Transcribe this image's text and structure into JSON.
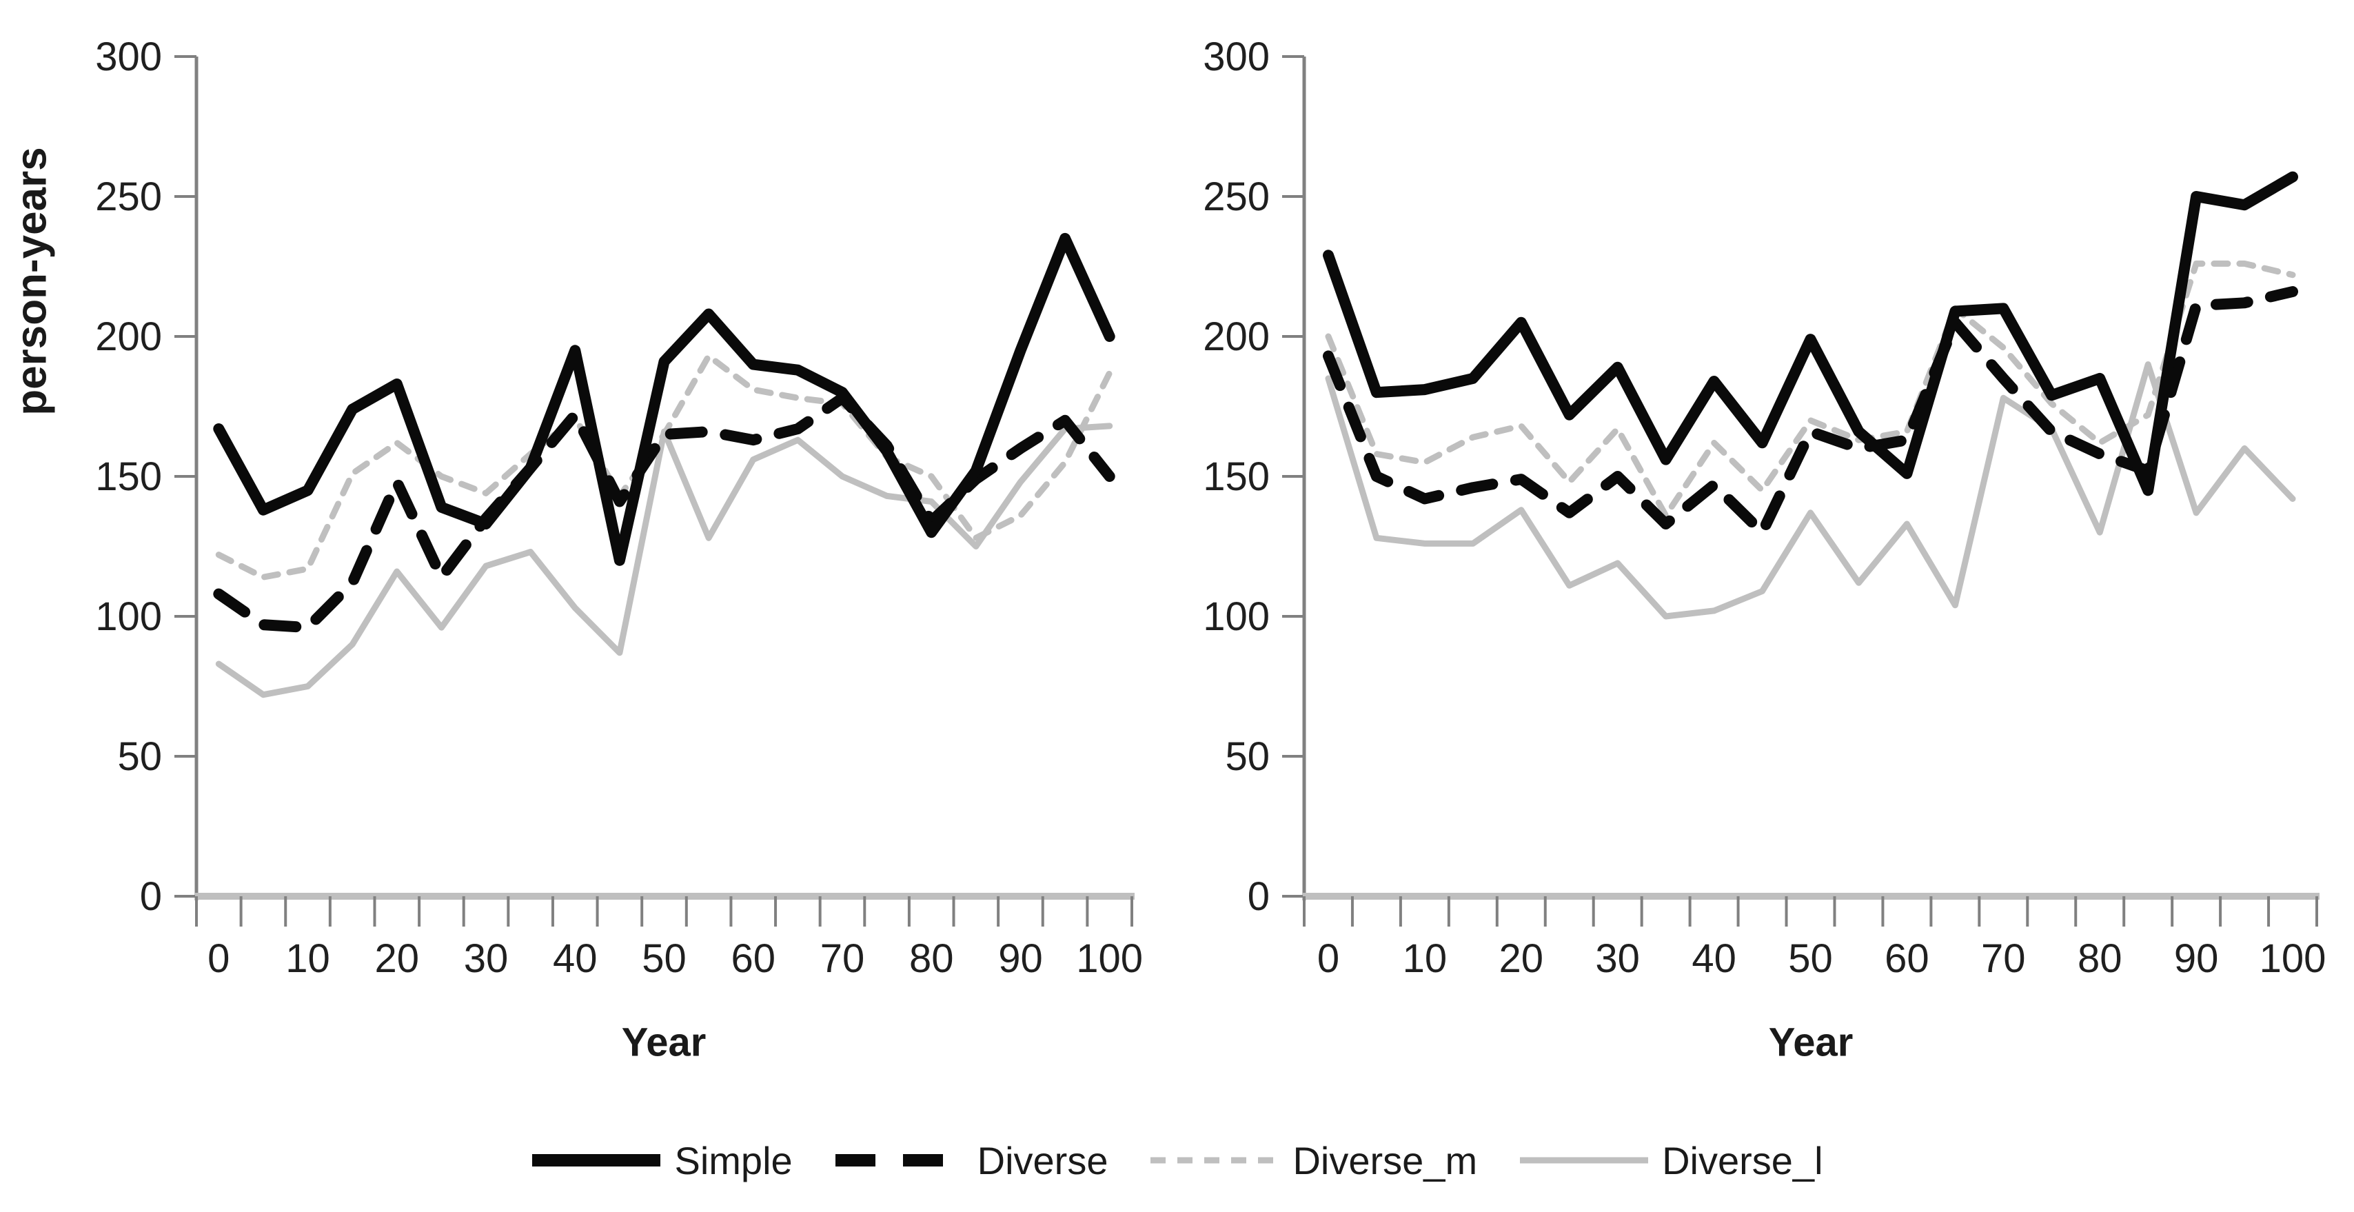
{
  "figure": {
    "background": "#ffffff",
    "ylabel": "person-years",
    "xlabel_left": "Year",
    "xlabel_right": "Year",
    "colors": {
      "series_black": "#0a0a0a",
      "series_gray": "#bfbfbf",
      "axis_line": "#bfbfbf",
      "tick_line": "#808080",
      "tick_text": "#1f1f1f"
    }
  },
  "legend": {
    "items": [
      {
        "label": "Simple",
        "color": "#0a0a0a",
        "style": "solid-thick"
      },
      {
        "label": "Diverse",
        "color": "#0a0a0a",
        "style": "dashed-thick"
      },
      {
        "label": "Diverse_m",
        "color": "#bfbfbf",
        "style": "dashed-thin"
      },
      {
        "label": "Diverse_l",
        "color": "#bfbfbf",
        "style": "solid-thin"
      }
    ]
  },
  "chart_data": [
    {
      "panel": "left",
      "type": "line",
      "title": "",
      "xlabel": "Year",
      "ylabel": "person-years",
      "x": [
        0,
        5,
        10,
        15,
        20,
        25,
        30,
        35,
        40,
        45,
        50,
        55,
        60,
        65,
        70,
        75,
        80,
        85,
        90,
        95,
        100
      ],
      "xtick_labels": [
        "0",
        "10",
        "20",
        "30",
        "40",
        "50",
        "60",
        "70",
        "80",
        "90",
        "100"
      ],
      "ylim": [
        0,
        300
      ],
      "yticks": [
        0,
        50,
        100,
        150,
        200,
        250,
        300
      ],
      "grid": false,
      "series": [
        {
          "name": "Simple",
          "color": "#0a0a0a",
          "style": "solid-thick",
          "values": [
            167,
            138,
            145,
            174,
            183,
            139,
            133,
            153,
            195,
            120,
            191,
            208,
            190,
            188,
            180,
            159,
            130,
            152,
            195,
            235,
            200
          ]
        },
        {
          "name": "Diverse",
          "color": "#0a0a0a",
          "style": "dashed-thick",
          "values": [
            108,
            97,
            96,
            112,
            148,
            114,
            135,
            153,
            172,
            141,
            165,
            166,
            163,
            167,
            178,
            161,
            134,
            149,
            160,
            170,
            150
          ]
        },
        {
          "name": "Diverse_m",
          "color": "#bfbfbf",
          "style": "dashed-thin",
          "values": [
            122,
            114,
            117,
            151,
            162,
            150,
            144,
            158,
            171,
            143,
            165,
            193,
            181,
            178,
            176,
            157,
            150,
            128,
            136,
            155,
            187
          ]
        },
        {
          "name": "Diverse_l",
          "color": "#bfbfbf",
          "style": "solid-thin",
          "values": [
            83,
            72,
            75,
            90,
            116,
            96,
            118,
            123,
            103,
            87,
            166,
            128,
            156,
            163,
            150,
            143,
            141,
            125,
            148,
            167,
            168
          ]
        }
      ]
    },
    {
      "panel": "right",
      "type": "line",
      "title": "",
      "xlabel": "Year",
      "ylabel": "",
      "x": [
        0,
        5,
        10,
        15,
        20,
        25,
        30,
        35,
        40,
        45,
        50,
        55,
        60,
        65,
        70,
        75,
        80,
        85,
        90,
        95,
        100
      ],
      "xtick_labels": [
        "0",
        "10",
        "20",
        "30",
        "40",
        "50",
        "60",
        "70",
        "80",
        "90",
        "100"
      ],
      "ylim": [
        0,
        300
      ],
      "yticks": [
        0,
        50,
        100,
        150,
        200,
        250,
        300
      ],
      "grid": false,
      "series": [
        {
          "name": "Simple",
          "color": "#0a0a0a",
          "style": "solid-thick",
          "values": [
            229,
            180,
            181,
            185,
            205,
            172,
            189,
            156,
            184,
            162,
            199,
            166,
            151,
            209,
            210,
            179,
            185,
            145,
            250,
            247,
            257
          ]
        },
        {
          "name": "Diverse",
          "color": "#0a0a0a",
          "style": "dashed-thick",
          "values": [
            193,
            150,
            142,
            146,
            149,
            137,
            150,
            133,
            147,
            130,
            166,
            160,
            163,
            205,
            185,
            166,
            158,
            152,
            211,
            212,
            216
          ]
        },
        {
          "name": "Diverse_m",
          "color": "#bfbfbf",
          "style": "dashed-thin",
          "values": [
            200,
            158,
            155,
            164,
            168,
            148,
            167,
            136,
            162,
            145,
            170,
            163,
            166,
            210,
            196,
            176,
            162,
            172,
            226,
            226,
            222
          ]
        },
        {
          "name": "Diverse_l",
          "color": "#bfbfbf",
          "style": "solid-thin",
          "values": [
            185,
            128,
            126,
            126,
            138,
            111,
            119,
            100,
            102,
            109,
            137,
            112,
            133,
            104,
            178,
            167,
            130,
            190,
            137,
            160,
            142
          ]
        }
      ]
    }
  ]
}
